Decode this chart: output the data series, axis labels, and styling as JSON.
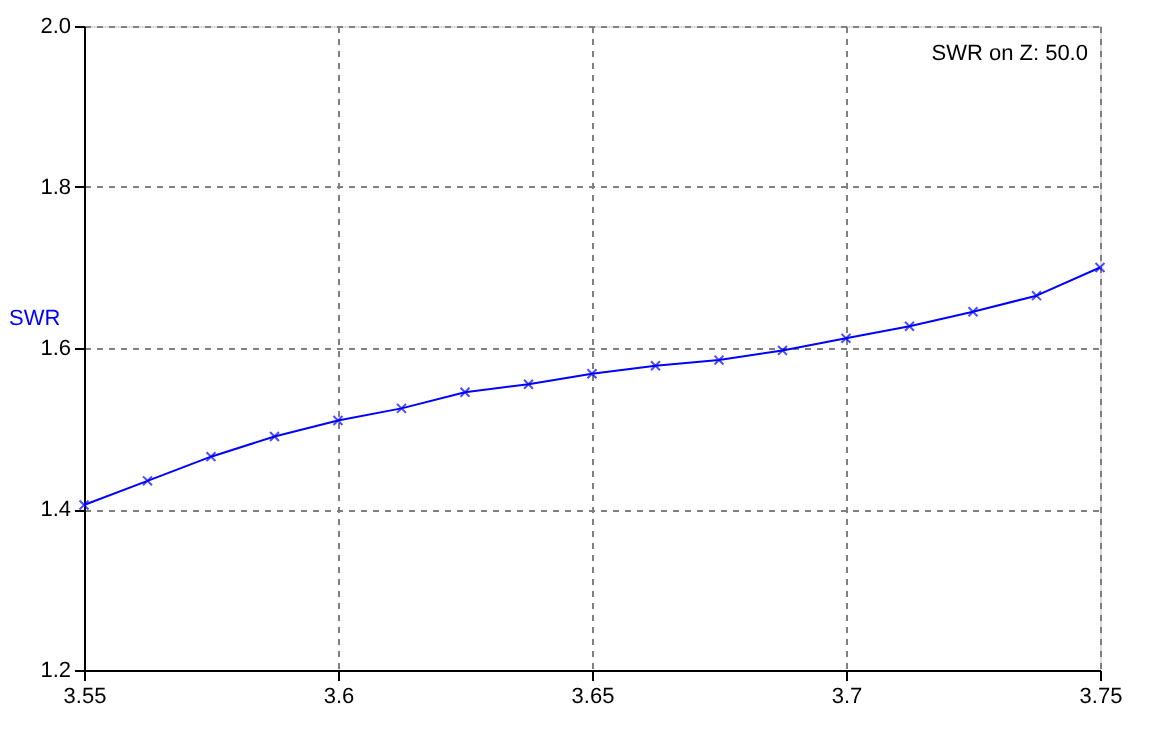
{
  "chart_data": {
    "type": "line",
    "ylabel": "SWR",
    "annotations": [
      "SWR on Z: 50.0"
    ],
    "x": [
      3.55,
      3.5625,
      3.575,
      3.5875,
      3.6,
      3.6125,
      3.625,
      3.6375,
      3.65,
      3.6625,
      3.675,
      3.6875,
      3.7,
      3.7125,
      3.725,
      3.7375,
      3.75
    ],
    "series": [
      {
        "color": "#0000ff",
        "values": [
          1.405,
          1.435,
          1.465,
          1.49,
          1.51,
          1.525,
          1.545,
          1.555,
          1.568,
          1.578,
          1.585,
          1.597,
          1.612,
          1.627,
          1.645,
          1.665,
          1.7
        ]
      }
    ],
    "xlim": [
      3.55,
      3.75
    ],
    "xticks": [
      3.55,
      3.6,
      3.65,
      3.7,
      3.75
    ],
    "ylim": [
      1.2,
      2.0
    ],
    "yticks": [
      1.2,
      1.4,
      1.6,
      1.8,
      {
        "value": 2.0,
        "label": "2.0"
      }
    ],
    "grid": true,
    "marker": "cross",
    "line_style": "solid"
  }
}
